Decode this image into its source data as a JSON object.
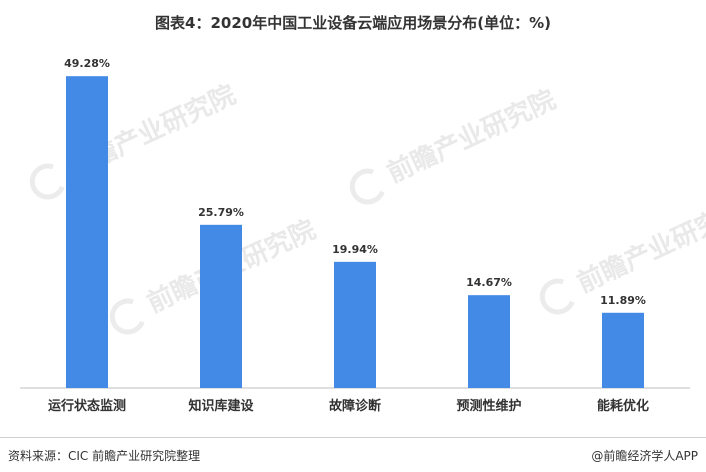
{
  "title": "图表4：2020年中国工业设备云端应用场景分布(单位：%)",
  "watermark": "前瞻产业研究院",
  "footer": {
    "source": "资料来源：CIC 前瞻产业研究院整理",
    "brand": "@前瞻经济学人APP"
  },
  "colors": {
    "bar": "#4389e6",
    "axis": "#bfbfbf",
    "text": "#333333"
  },
  "chart_data": {
    "type": "bar",
    "title": "图表4：2020年中国工业设备云端应用场景分布(单位：%)",
    "categories": [
      "运行状态监测",
      "知识库建设",
      "故障诊断",
      "预测性维护",
      "能耗优化"
    ],
    "values": [
      49.28,
      25.79,
      19.94,
      14.67,
      11.89
    ],
    "value_labels": [
      "49.28%",
      "25.79%",
      "19.94%",
      "14.67%",
      "11.89%"
    ],
    "xlabel": "",
    "ylabel": "",
    "ylim": [
      0,
      55
    ],
    "grid": false,
    "legend": "none"
  }
}
